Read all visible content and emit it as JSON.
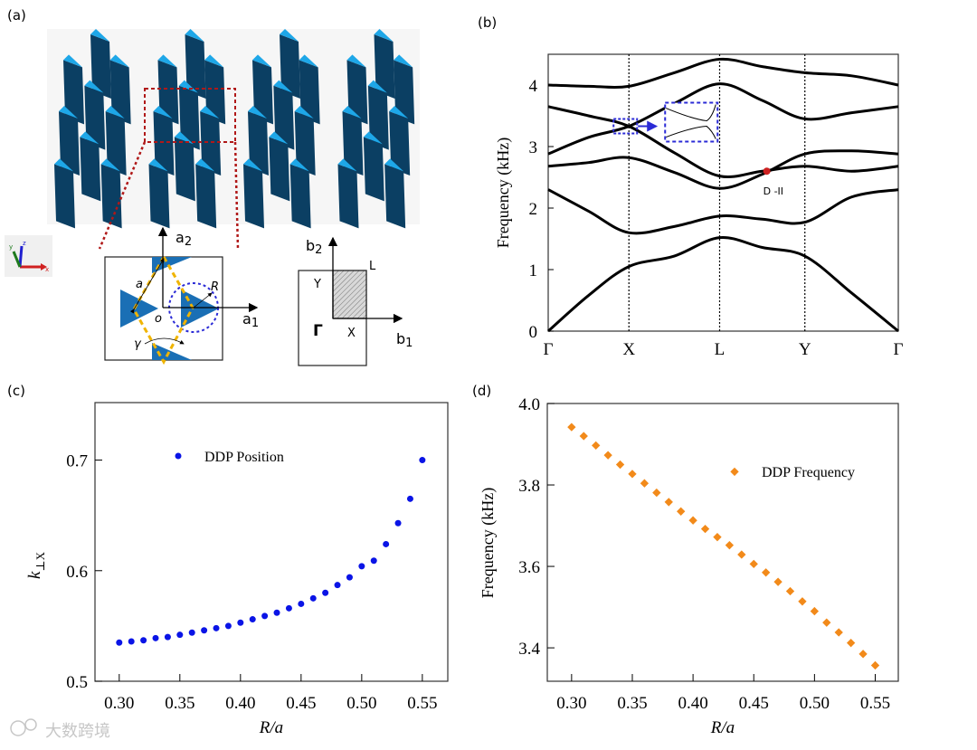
{
  "panel_labels": {
    "a": "(a)",
    "b": "(b)",
    "c": "(c)",
    "d": "(d)"
  },
  "panel_a": {
    "unit_cell_labels": {
      "a2": "a",
      "a2_sub": "2",
      "a1": "a",
      "a1_sub": "1",
      "a": "a",
      "o": "o",
      "R": "R",
      "gamma": "γ"
    },
    "bz_labels": {
      "b2": "b",
      "b2_sub": "2",
      "b1": "b",
      "b1_sub": "1",
      "Y": "Y",
      "L": "L",
      "Gamma": "Γ",
      "X": "X"
    },
    "triad_labels": {
      "x": "x",
      "y": "y",
      "z": "z"
    },
    "colors": {
      "prism_body": "#0b3f63",
      "prism_cap": "#1ea7e8",
      "triangle": "#1a6fb5",
      "rhombus": "#f0b400",
      "circle": "#2b2bd6",
      "zoom_box": "#b01818"
    }
  },
  "watermark": "大数跨境",
  "chart_data": [
    {
      "id": "b",
      "type": "line",
      "title": "",
      "xlabel": "",
      "ylabel": "Frequency (kHz)",
      "ylim": [
        0,
        4.5
      ],
      "yticks": [
        "0",
        "1",
        "2",
        "3",
        "4"
      ],
      "ytick_values": [
        0,
        1,
        2,
        3,
        4
      ],
      "xticks": [
        "Γ",
        "X",
        "L",
        "Y",
        "Γ"
      ],
      "xtick_values": [
        0,
        0.89,
        1.89,
        2.83,
        3.86
      ],
      "x": [
        0,
        0.445,
        0.89,
        1.39,
        1.89,
        2.36,
        2.83,
        3.345,
        3.86
      ],
      "series": [
        {
          "name": "band 1",
          "values": [
            0,
            0.58,
            1.05,
            1.22,
            1.52,
            1.36,
            1.22,
            0.62,
            0
          ]
        },
        {
          "name": "band 2",
          "values": [
            2.3,
            1.95,
            1.6,
            1.7,
            1.87,
            1.82,
            1.77,
            2.18,
            2.3
          ]
        },
        {
          "name": "band 3",
          "values": [
            2.68,
            2.74,
            2.82,
            2.58,
            2.32,
            2.55,
            2.88,
            2.93,
            2.88
          ]
        },
        {
          "name": "band 4",
          "values": [
            3.65,
            3.5,
            3.33,
            2.9,
            2.52,
            2.6,
            2.68,
            2.6,
            2.68
          ]
        },
        {
          "name": "band 5",
          "values": [
            2.88,
            3.15,
            3.33,
            3.7,
            4.02,
            3.75,
            3.45,
            3.55,
            3.65
          ]
        },
        {
          "name": "band 6",
          "values": [
            4.0,
            3.98,
            3.98,
            4.2,
            4.42,
            4.3,
            4.2,
            4.15,
            4.0
          ]
        }
      ],
      "annotations": [
        {
          "text": "D -II",
          "k": 2.41,
          "freq": 2.6,
          "color": "#cc2020"
        }
      ],
      "inset": {
        "k": 0.89,
        "freq": 3.33,
        "color": "#2b2bd6"
      }
    },
    {
      "id": "c",
      "type": "scatter",
      "title": "",
      "xlabel": "R/a",
      "ylabel": "k",
      "ylabel_sub": "⊥X",
      "xlim": [
        0.28,
        0.571
      ],
      "ylim": [
        0.5,
        0.752
      ],
      "xticks": [
        "0.30",
        "0.35",
        "0.40",
        "0.45",
        "0.50",
        "0.55"
      ],
      "xtick_values": [
        0.3,
        0.35,
        0.4,
        0.45,
        0.5,
        0.55
      ],
      "yticks": [
        "0.5",
        "0.6",
        "0.7"
      ],
      "ytick_values": [
        0.5,
        0.6,
        0.7
      ],
      "legend": "DDP Position",
      "legend_placement": "top-left",
      "color": "#0a14e6",
      "x": [
        0.3,
        0.31,
        0.32,
        0.33,
        0.34,
        0.35,
        0.36,
        0.37,
        0.38,
        0.39,
        0.4,
        0.41,
        0.42,
        0.43,
        0.44,
        0.45,
        0.46,
        0.47,
        0.48,
        0.49,
        0.5,
        0.51,
        0.52,
        0.53,
        0.54,
        0.55
      ],
      "y": [
        0.535,
        0.536,
        0.537,
        0.539,
        0.54,
        0.542,
        0.544,
        0.546,
        0.548,
        0.55,
        0.553,
        0.556,
        0.559,
        0.562,
        0.566,
        0.57,
        0.575,
        0.58,
        0.587,
        0.594,
        0.604,
        0.609,
        0.624,
        0.643,
        0.665,
        0.7
      ]
    },
    {
      "id": "d",
      "type": "scatter",
      "title": "",
      "xlabel": "R/a",
      "ylabel": "Frequency (kHz)",
      "xlim": [
        0.28,
        0.569
      ],
      "ylim": [
        3.318,
        4.0
      ],
      "xticks": [
        "0.30",
        "0.35",
        "0.40",
        "0.45",
        "0.50",
        "0.55"
      ],
      "xtick_values": [
        0.3,
        0.35,
        0.4,
        0.45,
        0.5,
        0.55
      ],
      "yticks": [
        "3.4",
        "3.6",
        "3.8",
        "4.0"
      ],
      "ytick_values": [
        3.4,
        3.6,
        3.8,
        4.0
      ],
      "legend": "DDP Frequency",
      "legend_placement": "top-right",
      "color": "#f28a1a",
      "x": [
        0.3,
        0.31,
        0.32,
        0.33,
        0.34,
        0.35,
        0.36,
        0.37,
        0.38,
        0.39,
        0.4,
        0.41,
        0.42,
        0.43,
        0.44,
        0.45,
        0.46,
        0.47,
        0.48,
        0.49,
        0.5,
        0.51,
        0.52,
        0.53,
        0.54,
        0.55
      ],
      "y": [
        3.942,
        3.92,
        3.897,
        3.873,
        3.85,
        3.827,
        3.804,
        3.781,
        3.758,
        3.735,
        3.713,
        3.692,
        3.672,
        3.652,
        3.629,
        3.606,
        3.585,
        3.562,
        3.539,
        3.514,
        3.49,
        3.462,
        3.438,
        3.412,
        3.385,
        3.357
      ]
    }
  ]
}
